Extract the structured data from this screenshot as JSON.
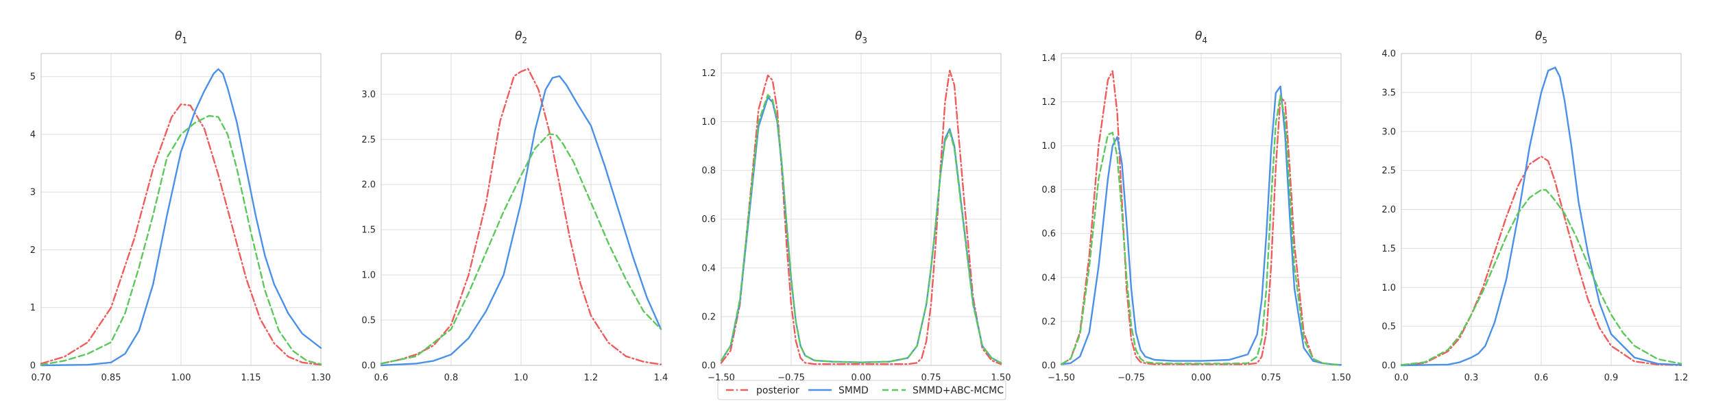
{
  "chart_data": [
    {
      "type": "line",
      "title": "θ1",
      "title_base": "θ",
      "title_sub": "1",
      "xlim": [
        0.7,
        1.3
      ],
      "ylim": [
        0,
        5.4
      ],
      "xticks": [
        "0.70",
        "0.85",
        "1.00",
        "1.15",
        "1.30"
      ],
      "yticks": [
        "0",
        "1",
        "2",
        "3",
        "4",
        "5"
      ],
      "grid": true,
      "series": [
        {
          "name": "posterior",
          "x": [
            0.7,
            0.75,
            0.8,
            0.85,
            0.9,
            0.94,
            0.98,
            1.0,
            1.02,
            1.05,
            1.08,
            1.11,
            1.14,
            1.17,
            1.2,
            1.23,
            1.26,
            1.3
          ],
          "y": [
            0.03,
            0.15,
            0.4,
            1.0,
            2.2,
            3.4,
            4.3,
            4.52,
            4.5,
            4.1,
            3.3,
            2.4,
            1.5,
            0.8,
            0.38,
            0.15,
            0.05,
            0.01
          ]
        },
        {
          "name": "SMMD",
          "x": [
            0.7,
            0.8,
            0.85,
            0.88,
            0.91,
            0.94,
            0.97,
            1.0,
            1.03,
            1.05,
            1.07,
            1.08,
            1.09,
            1.1,
            1.12,
            1.14,
            1.16,
            1.18,
            1.2,
            1.23,
            1.26,
            1.3
          ],
          "y": [
            0,
            0.01,
            0.05,
            0.2,
            0.6,
            1.4,
            2.6,
            3.7,
            4.4,
            4.75,
            5.05,
            5.13,
            5.05,
            4.8,
            4.2,
            3.4,
            2.6,
            1.9,
            1.4,
            0.9,
            0.55,
            0.3
          ]
        },
        {
          "name": "SMMD+ABC-MCMC",
          "x": [
            0.7,
            0.75,
            0.8,
            0.85,
            0.88,
            0.91,
            0.94,
            0.97,
            1.0,
            1.03,
            1.06,
            1.08,
            1.1,
            1.12,
            1.15,
            1.18,
            1.21,
            1.24,
            1.27,
            1.3
          ],
          "y": [
            0.01,
            0.08,
            0.2,
            0.4,
            0.9,
            1.7,
            2.6,
            3.6,
            4.0,
            4.2,
            4.32,
            4.3,
            4.0,
            3.4,
            2.3,
            1.3,
            0.6,
            0.25,
            0.08,
            0.02
          ]
        }
      ]
    },
    {
      "type": "line",
      "title": "θ2",
      "title_base": "θ",
      "title_sub": "2",
      "xlim": [
        0.6,
        1.4
      ],
      "ylim": [
        0,
        3.45
      ],
      "xticks": [
        "0.6",
        "0.8",
        "1.0",
        "1.2",
        "1.4"
      ],
      "yticks": [
        "0.0",
        "0.5",
        "1.0",
        "1.5",
        "2.0",
        "2.5",
        "3.0"
      ],
      "grid": true,
      "series": [
        {
          "name": "posterior",
          "x": [
            0.6,
            0.65,
            0.7,
            0.75,
            0.8,
            0.85,
            0.9,
            0.94,
            0.98,
            1.0,
            1.02,
            1.05,
            1.08,
            1.11,
            1.14,
            1.17,
            1.2,
            1.25,
            1.3,
            1.35,
            1.4
          ],
          "y": [
            0.02,
            0.06,
            0.12,
            0.22,
            0.45,
            1.0,
            1.8,
            2.7,
            3.2,
            3.25,
            3.28,
            3.05,
            2.6,
            2.0,
            1.4,
            0.9,
            0.55,
            0.25,
            0.1,
            0.04,
            0.01
          ]
        },
        {
          "name": "SMMD",
          "x": [
            0.6,
            0.7,
            0.75,
            0.8,
            0.85,
            0.9,
            0.95,
            1.0,
            1.04,
            1.07,
            1.09,
            1.11,
            1.13,
            1.16,
            1.2,
            1.24,
            1.28,
            1.32,
            1.36,
            1.4
          ],
          "y": [
            0,
            0.02,
            0.05,
            0.12,
            0.3,
            0.6,
            1.0,
            1.8,
            2.6,
            3.05,
            3.18,
            3.2,
            3.1,
            2.9,
            2.65,
            2.2,
            1.7,
            1.2,
            0.75,
            0.4
          ]
        },
        {
          "name": "SMMD+ABC-MCMC",
          "x": [
            0.6,
            0.7,
            0.8,
            0.85,
            0.9,
            0.95,
            1.0,
            1.04,
            1.08,
            1.1,
            1.12,
            1.15,
            1.2,
            1.25,
            1.3,
            1.35,
            1.4
          ],
          "y": [
            0.02,
            0.1,
            0.4,
            0.8,
            1.25,
            1.7,
            2.1,
            2.4,
            2.56,
            2.55,
            2.45,
            2.25,
            1.8,
            1.35,
            0.95,
            0.6,
            0.4
          ]
        }
      ]
    },
    {
      "type": "line",
      "title": "θ3",
      "title_base": "θ",
      "title_sub": "3",
      "xlim": [
        -1.5,
        1.5
      ],
      "ylim": [
        0,
        1.28
      ],
      "xticks": [
        "−1.50",
        "−0.75",
        "0.00",
        "0.75",
        "1.50"
      ],
      "yticks": [
        "0.0",
        "0.2",
        "0.4",
        "0.6",
        "0.8",
        "1.0",
        "1.2"
      ],
      "grid": true,
      "series": [
        {
          "name": "posterior",
          "x": [
            -1.5,
            -1.4,
            -1.3,
            -1.2,
            -1.1,
            -1.0,
            -0.95,
            -0.9,
            -0.85,
            -0.8,
            -0.75,
            -0.7,
            -0.65,
            -0.6,
            -0.5,
            -0.3,
            0.0,
            0.3,
            0.5,
            0.6,
            0.65,
            0.7,
            0.75,
            0.8,
            0.85,
            0.9,
            0.95,
            1.0,
            1.1,
            1.2,
            1.3,
            1.4,
            1.5
          ],
          "y": [
            0.01,
            0.06,
            0.25,
            0.65,
            1.05,
            1.19,
            1.17,
            1.05,
            0.8,
            0.5,
            0.25,
            0.1,
            0.03,
            0.01,
            0.005,
            0.005,
            0.005,
            0.005,
            0.005,
            0.01,
            0.03,
            0.1,
            0.25,
            0.5,
            0.8,
            1.08,
            1.21,
            1.15,
            0.7,
            0.28,
            0.07,
            0.02,
            0.005
          ]
        },
        {
          "name": "SMMD",
          "x": [
            -1.5,
            -1.4,
            -1.3,
            -1.2,
            -1.1,
            -1.0,
            -0.95,
            -0.9,
            -0.85,
            -0.8,
            -0.75,
            -0.7,
            -0.65,
            -0.6,
            -0.5,
            -0.3,
            0.0,
            0.3,
            0.5,
            0.6,
            0.7,
            0.75,
            0.8,
            0.85,
            0.9,
            0.95,
            1.0,
            1.1,
            1.2,
            1.3,
            1.4,
            1.5
          ],
          "y": [
            0.02,
            0.08,
            0.26,
            0.62,
            0.98,
            1.1,
            1.08,
            1.0,
            0.82,
            0.58,
            0.35,
            0.18,
            0.08,
            0.04,
            0.02,
            0.015,
            0.012,
            0.015,
            0.03,
            0.08,
            0.25,
            0.4,
            0.58,
            0.78,
            0.93,
            0.97,
            0.9,
            0.58,
            0.26,
            0.08,
            0.03,
            0.01
          ]
        },
        {
          "name": "SMMD+ABC-MCMC",
          "x": [
            -1.5,
            -1.4,
            -1.3,
            -1.2,
            -1.1,
            -1.0,
            -0.95,
            -0.9,
            -0.85,
            -0.8,
            -0.75,
            -0.7,
            -0.65,
            -0.6,
            -0.5,
            -0.3,
            0.0,
            0.3,
            0.5,
            0.6,
            0.7,
            0.75,
            0.8,
            0.85,
            0.9,
            0.95,
            1.0,
            1.1,
            1.2,
            1.3,
            1.4,
            1.5
          ],
          "y": [
            0.02,
            0.08,
            0.27,
            0.64,
            1.0,
            1.11,
            1.09,
            1.01,
            0.83,
            0.59,
            0.36,
            0.18,
            0.08,
            0.04,
            0.02,
            0.015,
            0.012,
            0.015,
            0.03,
            0.08,
            0.25,
            0.4,
            0.58,
            0.78,
            0.92,
            0.96,
            0.89,
            0.57,
            0.25,
            0.08,
            0.03,
            0.01
          ]
        }
      ]
    },
    {
      "type": "line",
      "title": "θ4",
      "title_base": "θ",
      "title_sub": "4",
      "xlim": [
        -1.5,
        1.5
      ],
      "ylim": [
        0,
        1.42
      ],
      "xticks": [
        "−1.50",
        "−0.75",
        "0.00",
        "0.75",
        "1.50"
      ],
      "yticks": [
        "0.0",
        "0.2",
        "0.4",
        "0.6",
        "0.8",
        "1.0",
        "1.2",
        "1.4"
      ],
      "grid": true,
      "series": [
        {
          "name": "posterior",
          "x": [
            -1.5,
            -1.4,
            -1.3,
            -1.2,
            -1.1,
            -1.0,
            -0.95,
            -0.9,
            -0.85,
            -0.8,
            -0.75,
            -0.7,
            -0.65,
            -0.6,
            -0.5,
            -0.3,
            0.0,
            0.3,
            0.5,
            0.6,
            0.65,
            0.7,
            0.75,
            0.8,
            0.85,
            0.9,
            0.95,
            1.0,
            1.1,
            1.2,
            1.3,
            1.4,
            1.5
          ],
          "y": [
            0.005,
            0.03,
            0.15,
            0.5,
            1.0,
            1.3,
            1.34,
            1.15,
            0.75,
            0.35,
            0.12,
            0.04,
            0.015,
            0.01,
            0.005,
            0.005,
            0.005,
            0.005,
            0.005,
            0.01,
            0.04,
            0.15,
            0.45,
            0.9,
            1.22,
            1.2,
            0.9,
            0.55,
            0.15,
            0.03,
            0.01,
            0.005,
            0.002
          ]
        },
        {
          "name": "SMMD",
          "x": [
            -1.5,
            -1.4,
            -1.3,
            -1.2,
            -1.1,
            -1.0,
            -0.95,
            -0.9,
            -0.85,
            -0.8,
            -0.75,
            -0.7,
            -0.65,
            -0.6,
            -0.5,
            -0.3,
            0.0,
            0.3,
            0.5,
            0.6,
            0.65,
            0.7,
            0.75,
            0.8,
            0.85,
            0.9,
            0.95,
            1.0,
            1.1,
            1.2,
            1.3,
            1.4,
            1.5
          ],
          "y": [
            0.005,
            0.01,
            0.04,
            0.15,
            0.45,
            0.85,
            1.0,
            1.04,
            0.92,
            0.65,
            0.35,
            0.15,
            0.07,
            0.04,
            0.025,
            0.02,
            0.02,
            0.025,
            0.05,
            0.14,
            0.3,
            0.6,
            0.98,
            1.24,
            1.27,
            1.05,
            0.68,
            0.35,
            0.08,
            0.02,
            0.01,
            0.005,
            0.002
          ]
        },
        {
          "name": "SMMD+ABC-MCMC",
          "x": [
            -1.5,
            -1.4,
            -1.3,
            -1.2,
            -1.1,
            -1.0,
            -0.95,
            -0.9,
            -0.85,
            -0.8,
            -0.75,
            -0.7,
            -0.65,
            -0.6,
            -0.5,
            -0.3,
            0.0,
            0.3,
            0.5,
            0.6,
            0.65,
            0.7,
            0.75,
            0.8,
            0.85,
            0.9,
            0.95,
            1.0,
            1.1,
            1.2,
            1.3,
            1.4,
            1.5
          ],
          "y": [
            0.005,
            0.03,
            0.14,
            0.45,
            0.85,
            1.05,
            1.06,
            0.95,
            0.7,
            0.4,
            0.18,
            0.07,
            0.03,
            0.015,
            0.01,
            0.008,
            0.008,
            0.008,
            0.01,
            0.04,
            0.12,
            0.35,
            0.75,
            1.1,
            1.23,
            1.12,
            0.8,
            0.45,
            0.12,
            0.03,
            0.01,
            0.005,
            0.002
          ]
        }
      ]
    },
    {
      "type": "line",
      "title": "θ5",
      "title_base": "θ",
      "title_sub": "5",
      "xlim": [
        0.0,
        1.2
      ],
      "ylim": [
        0,
        4.0
      ],
      "xticks": [
        "0.0",
        "0.3",
        "0.6",
        "0.9",
        "1.2"
      ],
      "yticks": [
        "0.0",
        "0.5",
        "1.0",
        "1.5",
        "2.0",
        "2.5",
        "3.0",
        "3.5",
        "4.0"
      ],
      "grid": true,
      "series": [
        {
          "name": "posterior",
          "x": [
            0.0,
            0.1,
            0.2,
            0.25,
            0.3,
            0.35,
            0.4,
            0.45,
            0.5,
            0.55,
            0.6,
            0.63,
            0.66,
            0.7,
            0.75,
            0.8,
            0.85,
            0.9,
            1.0,
            1.1,
            1.2
          ],
          "y": [
            0.005,
            0.03,
            0.18,
            0.35,
            0.65,
            1.0,
            1.45,
            1.9,
            2.3,
            2.58,
            2.68,
            2.62,
            2.35,
            1.9,
            1.35,
            0.85,
            0.48,
            0.25,
            0.05,
            0.01,
            0.002
          ]
        },
        {
          "name": "SMMD",
          "x": [
            0.0,
            0.2,
            0.25,
            0.3,
            0.33,
            0.36,
            0.4,
            0.45,
            0.5,
            0.55,
            0.6,
            0.63,
            0.66,
            0.68,
            0.7,
            0.73,
            0.76,
            0.8,
            0.85,
            0.9,
            1.0,
            1.1,
            1.2
          ],
          "y": [
            0,
            0.01,
            0.04,
            0.1,
            0.15,
            0.25,
            0.55,
            1.1,
            1.9,
            2.8,
            3.5,
            3.78,
            3.82,
            3.7,
            3.4,
            2.8,
            2.1,
            1.45,
            0.8,
            0.4,
            0.1,
            0.02,
            0.005
          ]
        },
        {
          "name": "SMMD+ABC-MCMC",
          "x": [
            0.0,
            0.1,
            0.2,
            0.25,
            0.3,
            0.35,
            0.4,
            0.45,
            0.5,
            0.55,
            0.6,
            0.62,
            0.65,
            0.7,
            0.75,
            0.8,
            0.85,
            0.9,
            0.95,
            1.0,
            1.1,
            1.2
          ],
          "y": [
            0.005,
            0.04,
            0.2,
            0.38,
            0.65,
            0.95,
            1.3,
            1.65,
            1.95,
            2.15,
            2.25,
            2.25,
            2.15,
            1.95,
            1.65,
            1.3,
            0.95,
            0.65,
            0.42,
            0.25,
            0.08,
            0.02
          ]
        }
      ]
    }
  ],
  "legend": {
    "placement": "bottom-center",
    "entries": [
      {
        "name": "posterior",
        "color": "#f05b5b",
        "style": "dashdot"
      },
      {
        "name": "SMMD",
        "color": "#4a90e8",
        "style": "solid"
      },
      {
        "name": "SMMD+ABC-MCMC",
        "color": "#5cc85c",
        "style": "dashed"
      }
    ]
  },
  "colors": {
    "posterior": "#f05b5b",
    "SMMD": "#4a90e8",
    "SMMD+ABC-MCMC": "#5cc85c",
    "grid": "#dedede",
    "axis": "#cccccc"
  }
}
